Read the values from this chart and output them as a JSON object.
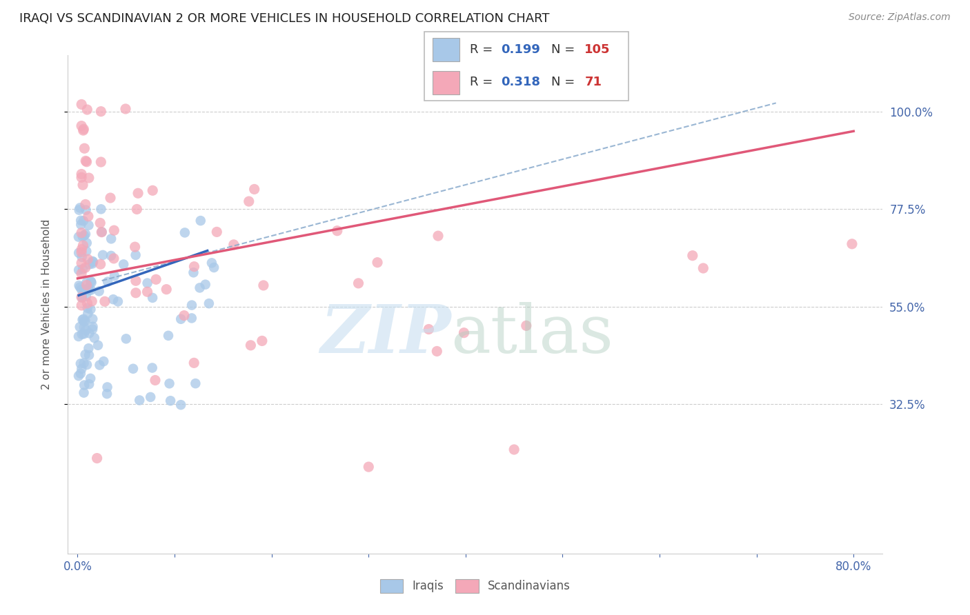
{
  "title": "IRAQI VS SCANDINAVIAN 2 OR MORE VEHICLES IN HOUSEHOLD CORRELATION CHART",
  "source": "Source: ZipAtlas.com",
  "ylabel": "2 or more Vehicles in Household",
  "ytick_labels": [
    "100.0%",
    "77.5%",
    "55.0%",
    "32.5%"
  ],
  "ytick_values": [
    1.0,
    0.775,
    0.55,
    0.325
  ],
  "legend_iraqis_R": "0.199",
  "legend_iraqis_N": "105",
  "legend_scandinavians_R": "0.318",
  "legend_scandinavians_N": "71",
  "iraqis_color": "#a8c8e8",
  "scandinavians_color": "#f4a8b8",
  "iraqis_line_color": "#3366bb",
  "scandinavians_line_color": "#e05878",
  "dashed_line_color": "#88aacc",
  "xmin": 0.0,
  "xmax": 0.8,
  "ymin": 0.0,
  "ymax": 1.1,
  "iraqi_line_x0": 0.0,
  "iraqi_line_x1": 0.135,
  "iraqi_line_y0": 0.575,
  "iraqi_line_y1": 0.68,
  "scand_line_x0": 0.0,
  "scand_line_x1": 0.8,
  "scand_line_y0": 0.615,
  "scand_line_y1": 0.955,
  "dash_line_x0": 0.025,
  "dash_line_x1": 0.72,
  "dash_line_y0": 0.61,
  "dash_line_y1": 1.02
}
